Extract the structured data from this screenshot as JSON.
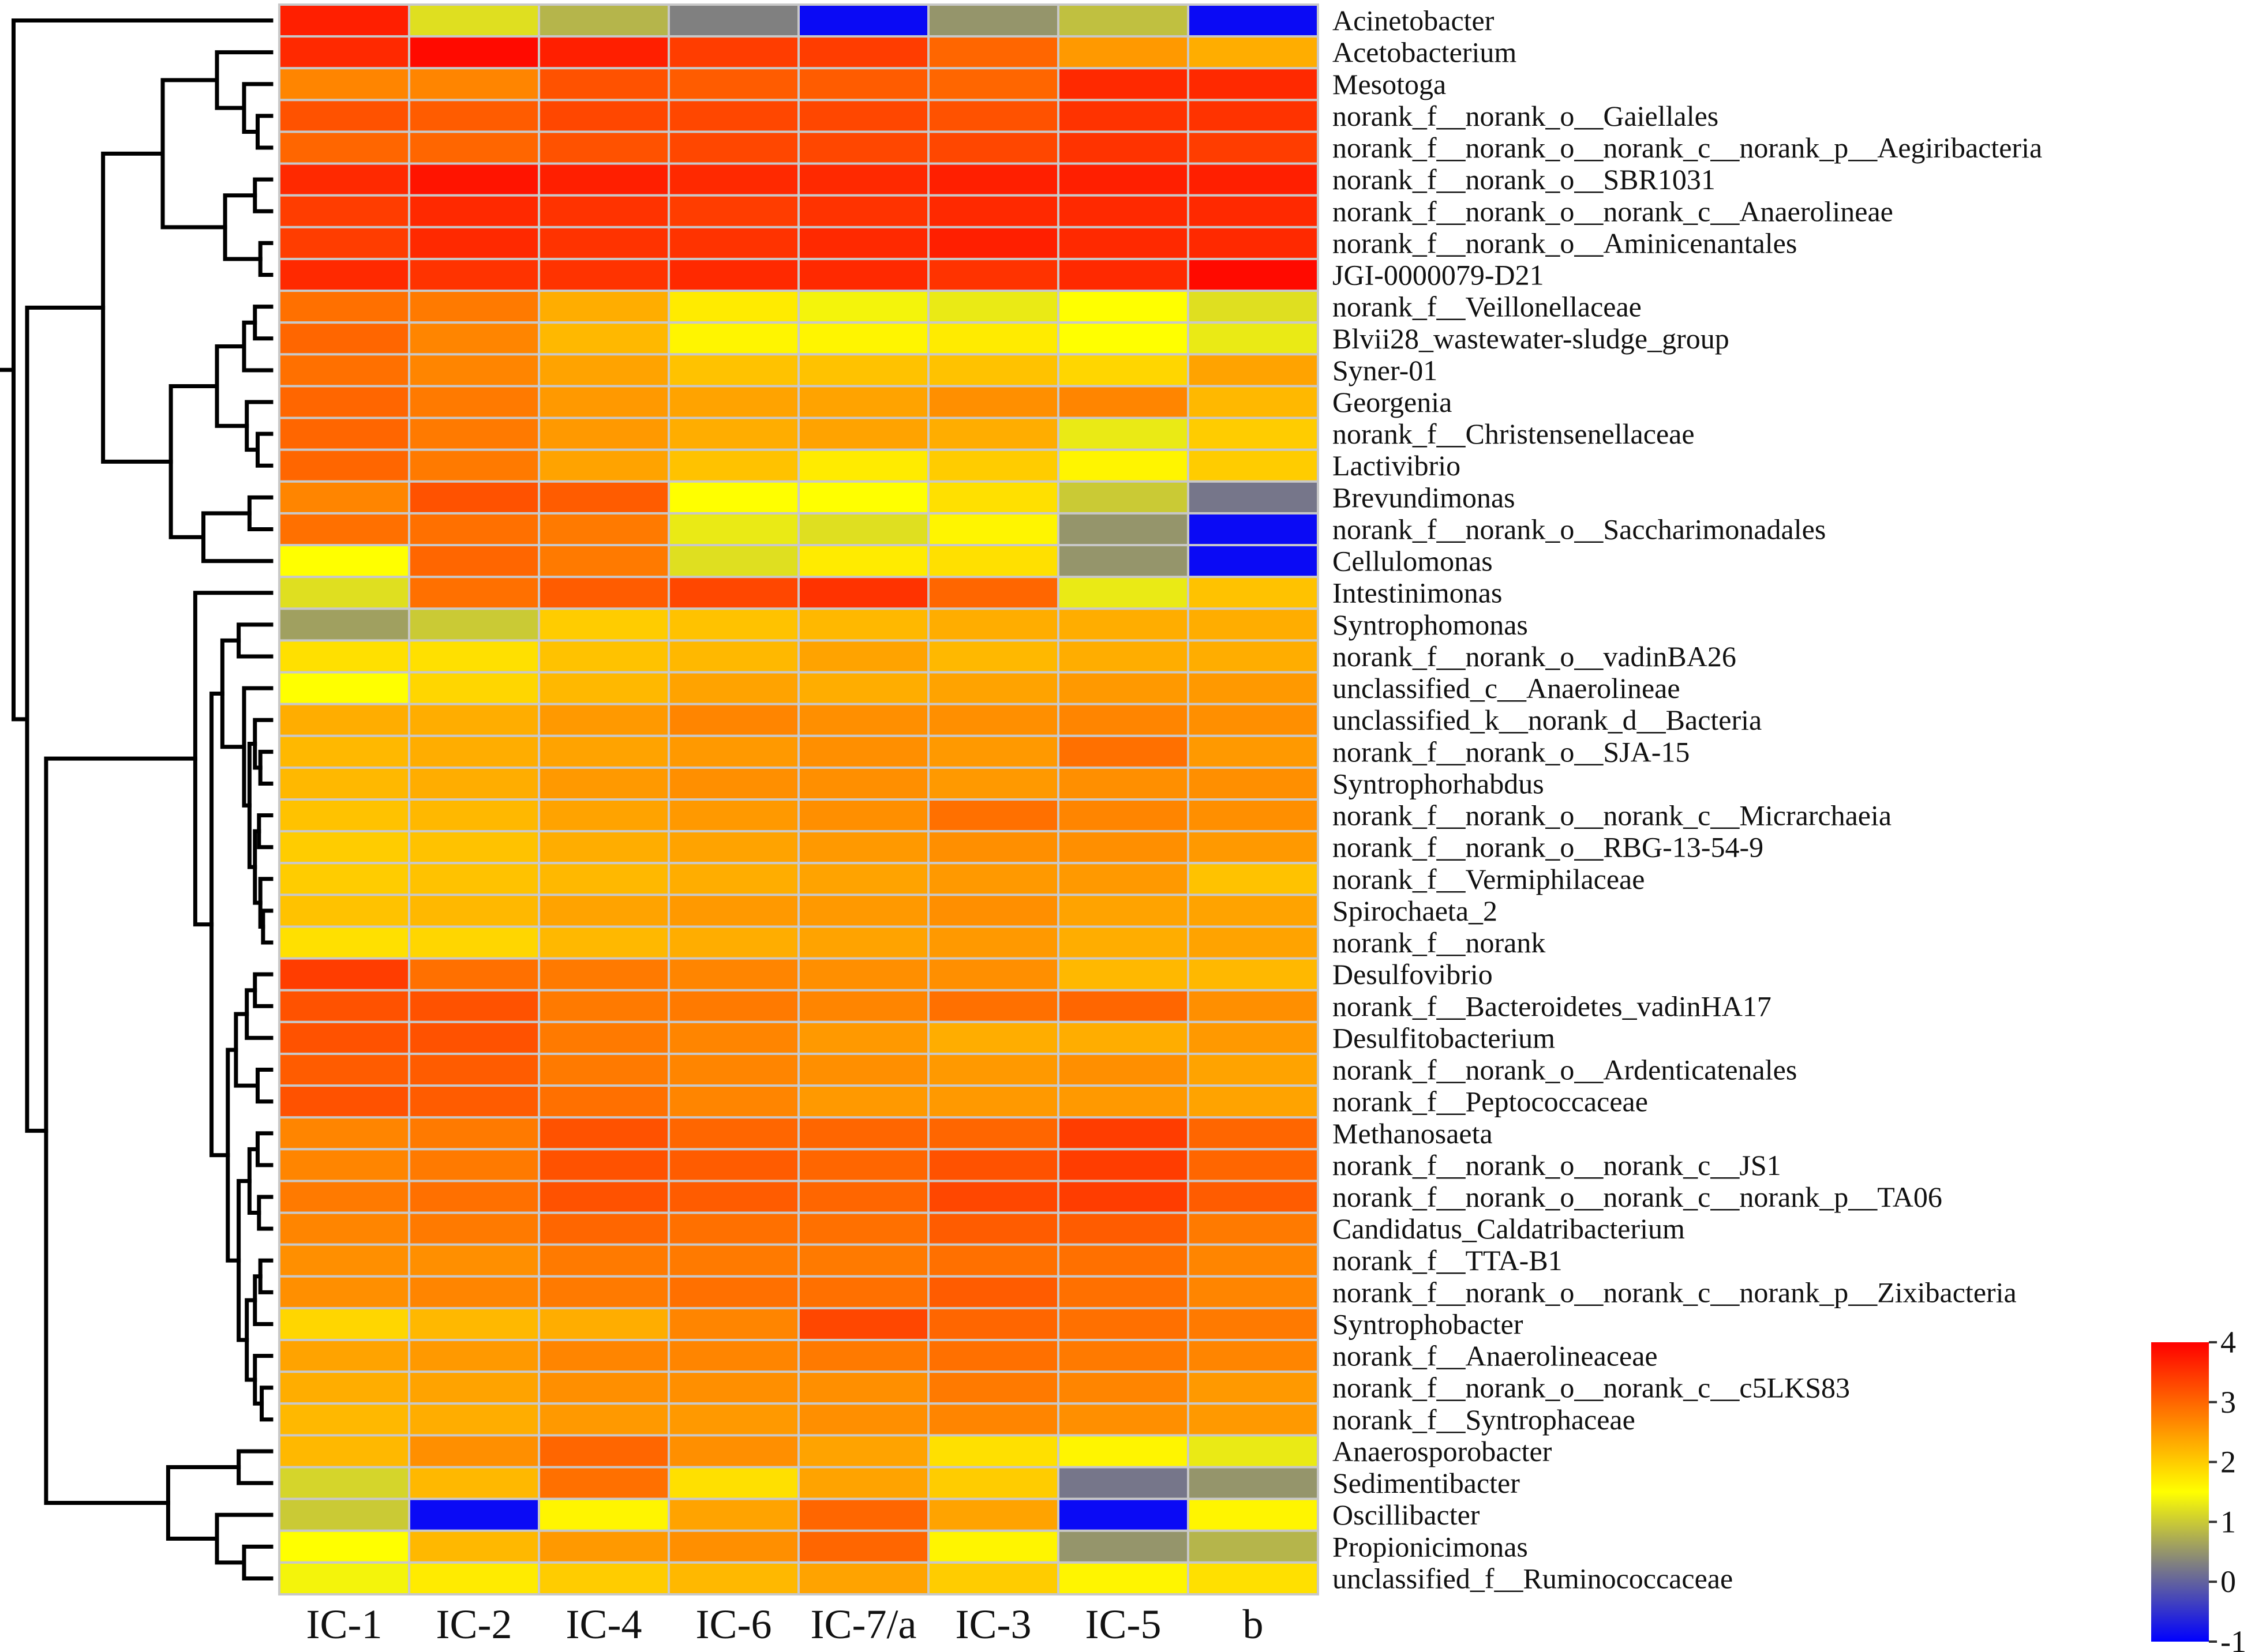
{
  "chart_data": {
    "type": "heatmap",
    "title": "",
    "columns": [
      "IC-1",
      "IC-2",
      "IC-4",
      "IC-6",
      "IC-7/a",
      "IC-3",
      "IC-5",
      "b"
    ],
    "rows": [
      "Acinetobacter",
      "Acetobacterium",
      "Mesotoga",
      "norank_f__norank_o__Gaiellales",
      "norank_f__norank_o__norank_c__norank_p__Aegiribacteria",
      "norank_f__norank_o__SBR1031",
      "norank_f__norank_o__norank_c__Anaerolineae",
      "norank_f__norank_o__Aminicenantales",
      "JGI-0000079-D21",
      "norank_f__Veillonellaceae",
      "Blvii28_wastewater-sludge_group",
      "Syner-01",
      "Georgenia",
      "norank_f__Christensenellaceae",
      "Lactivibrio",
      "Brevundimonas",
      "norank_f__norank_o__Saccharimonadales",
      "Cellulomonas",
      "Intestinimonas",
      "Syntrophomonas",
      "norank_f__norank_o__vadinBA26",
      "unclassified_c__Anaerolineae",
      "unclassified_k__norank_d__Bacteria",
      "norank_f__norank_o__SJA-15",
      "Syntrophorhabdus",
      "norank_f__norank_o__norank_c__Micrarchaeia",
      "norank_f__norank_o__RBG-13-54-9",
      "norank_f__Vermiphilaceae",
      "Spirochaeta_2",
      "norank_f__norank",
      "Desulfovibrio",
      "norank_f__Bacteroidetes_vadinHA17",
      "Desulfitobacterium",
      "norank_f__norank_o__Ardenticatenales",
      "norank_f__Peptococcaceae",
      "Methanosaeta",
      "norank_f__norank_o__norank_c__JS1",
      "norank_f__norank_o__norank_c__norank_p__TA06",
      "Candidatus_Caldatribacterium",
      "norank_f__TTA-B1",
      "norank_f__norank_o__norank_c__norank_p__Zixibacteria",
      "Syntrophobacter",
      "norank_f__Anaerolineaceae",
      "norank_f__norank_o__norank_c__c5LKS83",
      "norank_f__Syntrophaceae",
      "Anaerosporobacter",
      "Sedimentibacter",
      "Oscillibacter",
      "Propionicimonas",
      "unclassified_f__Ruminococcaceae"
    ],
    "values": [
      [
        3.7,
        1.2,
        0.8,
        0.3,
        -0.9,
        0.5,
        0.9,
        -0.9
      ],
      [
        3.6,
        3.9,
        3.7,
        3.4,
        3.4,
        3.0,
        2.5,
        2.3
      ],
      [
        2.7,
        2.7,
        3.2,
        3.1,
        3.1,
        3.0,
        3.6,
        3.6
      ],
      [
        3.2,
        3.1,
        3.3,
        3.3,
        3.3,
        3.2,
        3.5,
        3.5
      ],
      [
        3.0,
        3.0,
        3.2,
        3.3,
        3.3,
        3.3,
        3.5,
        3.4
      ],
      [
        3.6,
        3.8,
        3.7,
        3.6,
        3.6,
        3.7,
        3.7,
        3.7
      ],
      [
        3.4,
        3.6,
        3.5,
        3.4,
        3.5,
        3.6,
        3.6,
        3.6
      ],
      [
        3.4,
        3.6,
        3.5,
        3.5,
        3.6,
        3.7,
        3.6,
        3.6
      ],
      [
        3.6,
        3.5,
        3.5,
        3.6,
        3.6,
        3.5,
        3.6,
        3.9
      ],
      [
        2.9,
        2.8,
        2.3,
        1.7,
        1.4,
        1.3,
        1.5,
        1.2
      ],
      [
        3.0,
        2.7,
        2.2,
        1.6,
        1.6,
        1.7,
        1.5,
        1.3
      ],
      [
        2.9,
        2.7,
        2.4,
        2.1,
        2.1,
        2.1,
        1.9,
        2.4
      ],
      [
        3.0,
        2.8,
        2.5,
        2.4,
        2.4,
        2.6,
        2.7,
        2.2
      ],
      [
        3.0,
        2.8,
        2.5,
        2.3,
        2.4,
        2.3,
        1.3,
        2.0
      ],
      [
        3.0,
        2.8,
        2.4,
        2.1,
        1.7,
        2.0,
        1.6,
        2.0
      ],
      [
        2.7,
        3.2,
        3.1,
        1.5,
        1.5,
        1.8,
        1.0,
        0.2
      ],
      [
        2.9,
        2.9,
        2.8,
        1.3,
        1.2,
        1.6,
        0.5,
        -0.9
      ],
      [
        1.5,
        3.0,
        2.8,
        1.2,
        1.7,
        1.8,
        0.5,
        -0.9
      ],
      [
        1.2,
        2.9,
        3.1,
        3.3,
        3.5,
        3.0,
        1.3,
        2.1
      ],
      [
        0.6,
        1.0,
        2.0,
        2.1,
        2.2,
        2.3,
        2.3,
        2.3
      ],
      [
        1.8,
        1.8,
        2.1,
        2.2,
        2.4,
        2.2,
        2.3,
        2.3
      ],
      [
        1.5,
        1.9,
        2.2,
        2.4,
        2.3,
        2.4,
        2.5,
        2.5
      ],
      [
        2.3,
        2.3,
        2.5,
        2.7,
        2.6,
        2.6,
        2.7,
        2.6
      ],
      [
        2.2,
        2.3,
        2.4,
        2.5,
        2.6,
        2.5,
        2.9,
        2.5
      ],
      [
        2.2,
        2.3,
        2.5,
        2.6,
        2.6,
        2.5,
        2.6,
        2.6
      ],
      [
        2.1,
        2.2,
        2.4,
        2.5,
        2.6,
        2.9,
        2.7,
        2.6
      ],
      [
        2.0,
        2.1,
        2.3,
        2.4,
        2.5,
        2.6,
        2.6,
        2.5
      ],
      [
        2.0,
        2.1,
        2.2,
        2.3,
        2.4,
        2.5,
        2.5,
        2.1
      ],
      [
        2.1,
        2.2,
        2.4,
        2.5,
        2.5,
        2.6,
        2.4,
        2.4
      ],
      [
        1.8,
        1.9,
        2.2,
        2.3,
        2.4,
        2.5,
        2.3,
        2.4
      ],
      [
        3.4,
        2.9,
        2.8,
        2.7,
        2.6,
        2.6,
        2.2,
        2.2
      ],
      [
        3.2,
        3.2,
        2.8,
        2.8,
        2.7,
        2.9,
        3.0,
        2.6
      ],
      [
        3.2,
        3.2,
        2.8,
        2.7,
        2.5,
        2.3,
        2.3,
        2.5
      ],
      [
        3.1,
        3.1,
        2.8,
        2.7,
        2.6,
        2.5,
        2.6,
        2.4
      ],
      [
        3.2,
        3.1,
        2.9,
        2.7,
        2.5,
        2.5,
        2.5,
        2.4
      ],
      [
        2.7,
        2.8,
        3.2,
        3.0,
        3.0,
        3.0,
        3.4,
        3.0
      ],
      [
        2.7,
        2.8,
        3.2,
        3.1,
        3.0,
        3.2,
        3.4,
        3.0
      ],
      [
        2.8,
        2.9,
        3.2,
        3.1,
        3.0,
        3.3,
        3.4,
        3.1
      ],
      [
        2.7,
        2.8,
        3.0,
        2.9,
        2.9,
        3.1,
        3.1,
        2.8
      ],
      [
        2.6,
        2.6,
        2.8,
        2.8,
        2.8,
        2.9,
        2.9,
        2.7
      ],
      [
        2.6,
        2.7,
        2.8,
        2.9,
        2.9,
        3.1,
        2.9,
        2.7
      ],
      [
        1.9,
        2.2,
        2.3,
        2.7,
        3.3,
        3.0,
        2.9,
        2.8
      ],
      [
        2.4,
        2.5,
        2.7,
        2.7,
        2.8,
        2.9,
        2.8,
        2.7
      ],
      [
        2.3,
        2.4,
        2.6,
        2.6,
        2.6,
        2.8,
        2.7,
        2.5
      ],
      [
        2.2,
        2.3,
        2.5,
        2.5,
        2.6,
        2.7,
        2.6,
        2.5
      ],
      [
        2.2,
        2.6,
        3.0,
        2.6,
        2.4,
        1.8,
        1.6,
        1.3
      ],
      [
        1.1,
        2.2,
        2.9,
        1.8,
        2.4,
        2.0,
        0.2,
        0.5
      ],
      [
        1.0,
        -0.9,
        1.6,
        2.4,
        3.0,
        2.4,
        -0.9,
        1.6
      ],
      [
        1.5,
        2.2,
        2.5,
        2.6,
        3.0,
        1.6,
        0.5,
        0.8
      ],
      [
        1.4,
        1.7,
        2.0,
        2.2,
        2.4,
        2.0,
        1.6,
        1.8
      ]
    ],
    "color_scale": {
      "min": -1,
      "max": 4,
      "ticks": [
        4,
        3,
        2,
        1,
        0,
        -1
      ],
      "colors": [
        "#0000ff",
        "#808080",
        "#ffff00",
        "#ff0000"
      ],
      "stops": [
        -1,
        0.3,
        1.5,
        4
      ]
    },
    "row_dendrogram": "left",
    "legend_position": "bottom-right",
    "cell_border_color": "#c8c8c8"
  }
}
